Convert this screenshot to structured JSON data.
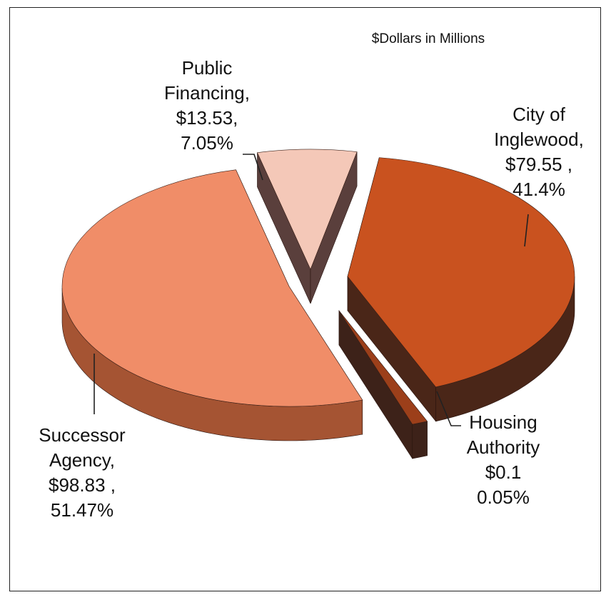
{
  "chart_data": {
    "type": "pie",
    "title": "$Dollars in Millions",
    "slices": [
      {
        "name": "City of Inglewood",
        "value": 79.55,
        "percent": 41.4,
        "label_lines": [
          "City of",
          "Inglewood,",
          "$79.55 ,",
          "41.4%"
        ],
        "top_color": "#c9521f",
        "side_color": "#4a2618"
      },
      {
        "name": "Housing Authority",
        "value": 0.1,
        "percent": 0.05,
        "label_lines": [
          "Housing",
          "Authority",
          "$0.1",
          "0.05%"
        ],
        "top_color": "#9c3f1a",
        "side_color": "#3d2219"
      },
      {
        "name": "Successor Agency",
        "value": 98.83,
        "percent": 51.47,
        "label_lines": [
          "Successor",
          "Agency,",
          "$98.83 ,",
          "51.47%"
        ],
        "top_color": "#f08d68",
        "side_color": "#a55433"
      },
      {
        "name": "Public Financing",
        "value": 13.53,
        "percent": 7.05,
        "label_lines": [
          "Public",
          "Financing,",
          "$13.53,",
          "7.05%"
        ],
        "top_color": "#f4c8b8",
        "side_color": "#5a3f3c"
      }
    ],
    "legend": "none"
  }
}
